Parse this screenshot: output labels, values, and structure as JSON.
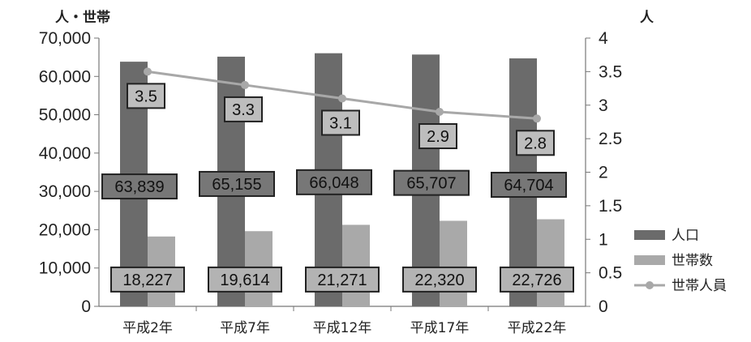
{
  "chart_data": {
    "type": "bar",
    "categories": [
      "平成2年",
      "平成7年",
      "平成12年",
      "平成17年",
      "平成22年"
    ],
    "series": [
      {
        "name": "人口",
        "type": "bar",
        "axis": "left",
        "values": [
          63839,
          65155,
          66048,
          65707,
          64704
        ],
        "labels": [
          "63,839",
          "65,155",
          "66,048",
          "65,707",
          "64,704"
        ],
        "color": "#6b6b6b"
      },
      {
        "name": "世帯数",
        "type": "bar",
        "axis": "left",
        "values": [
          18227,
          19614,
          21271,
          22320,
          22726
        ],
        "labels": [
          "18,227",
          "19,614",
          "21,271",
          "22,320",
          "22,726"
        ],
        "color": "#a9a9a9"
      },
      {
        "name": "世帯人員",
        "type": "line",
        "axis": "right",
        "values": [
          3.5,
          3.3,
          3.1,
          2.9,
          2.8
        ],
        "labels": [
          "3.5",
          "3.3",
          "3.1",
          "2.9",
          "2.8"
        ],
        "color": "#a8a8a8"
      }
    ],
    "left_axis": {
      "unit_label": "人・世帯",
      "ylim": [
        0,
        70000
      ],
      "ticks": [
        "0",
        "10,000",
        "20,000",
        "30,000",
        "40,000",
        "50,000",
        "60,000",
        "70,000"
      ]
    },
    "right_axis": {
      "unit_label": "人",
      "ylim": [
        0,
        4
      ],
      "ticks": [
        "0",
        "0.5",
        "1",
        "1.5",
        "2",
        "2.5",
        "3",
        "3.5",
        "4"
      ]
    },
    "grid": false,
    "legend_position": "right"
  }
}
